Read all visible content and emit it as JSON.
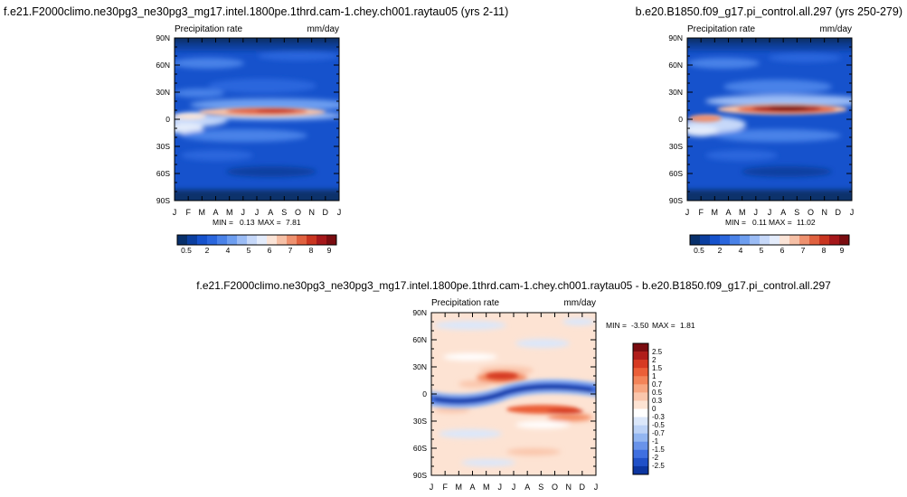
{
  "chart_data": [
    {
      "type": "heatmap",
      "title": "f.e21.F2000climo.ne30pg3_ne30pg3_mg17.intel.1800pe.1thrd.cam-1.chey.ch001.raytau05 (yrs 2-11)",
      "left_label": "Precipitation rate",
      "right_label": "mm/day",
      "x_ticks": [
        "J",
        "F",
        "M",
        "A",
        "M",
        "J",
        "J",
        "A",
        "S",
        "O",
        "N",
        "D",
        "J"
      ],
      "y_ticks": [
        "90N",
        "60N",
        "30N",
        "0",
        "30S",
        "60S",
        "90S"
      ],
      "ylim": [
        -90,
        90
      ],
      "stats": {
        "min_label": "MIN =",
        "min": "0.13",
        "max_label": "MAX =",
        "max": "7.81"
      },
      "colorbar": {
        "orientation": "horizontal",
        "labels": [
          "0.5",
          "2",
          "4",
          "5",
          "6",
          "7",
          "8",
          "9"
        ],
        "colors": [
          "#08306b",
          "#0b3fa0",
          "#1652cc",
          "#2a66dd",
          "#4a82e8",
          "#6d9ef0",
          "#9bbcf5",
          "#c6d8f9",
          "#e4ecfb",
          "#fbe4d7",
          "#f6c0a6",
          "#ee916f",
          "#e0613f",
          "#c93520",
          "#a5171a",
          "#7a0c10"
        ]
      }
    },
    {
      "type": "heatmap",
      "title": "b.e20.B1850.f09_g17.pi_control.all.297 (yrs 250-279)",
      "left_label": "Precipitation rate",
      "right_label": "mm/day",
      "x_ticks": [
        "J",
        "F",
        "M",
        "A",
        "M",
        "J",
        "J",
        "A",
        "S",
        "O",
        "N",
        "D",
        "J"
      ],
      "y_ticks": [
        "90N",
        "60N",
        "30N",
        "0",
        "30S",
        "60S",
        "90S"
      ],
      "ylim": [
        -90,
        90
      ],
      "stats": {
        "min_label": "MIN =",
        "min": "0.11",
        "max_label": "MAX =",
        "max": "11.02"
      },
      "colorbar": {
        "orientation": "horizontal",
        "labels": [
          "0.5",
          "2",
          "4",
          "5",
          "6",
          "7",
          "8",
          "9"
        ],
        "colors": [
          "#08306b",
          "#0b3fa0",
          "#1652cc",
          "#2a66dd",
          "#4a82e8",
          "#6d9ef0",
          "#9bbcf5",
          "#c6d8f9",
          "#e4ecfb",
          "#fbe4d7",
          "#f6c0a6",
          "#ee916f",
          "#e0613f",
          "#c93520",
          "#a5171a",
          "#7a0c10"
        ]
      }
    },
    {
      "type": "heatmap",
      "title": "f.e21.F2000climo.ne30pg3_ne30pg3_mg17.intel.1800pe.1thrd.cam-1.chey.ch001.raytau05 - b.e20.B1850.f09_g17.pi_control.all.297",
      "left_label": "Precipitation rate",
      "right_label": "mm/day",
      "x_ticks": [
        "J",
        "F",
        "M",
        "A",
        "M",
        "J",
        "J",
        "A",
        "S",
        "O",
        "N",
        "D",
        "J"
      ],
      "y_ticks": [
        "90N",
        "60N",
        "30N",
        "0",
        "30S",
        "60S",
        "90S"
      ],
      "ylim": [
        -90,
        90
      ],
      "stats": {
        "min_label": "MIN =",
        "min": "-3.50",
        "max_label": "MAX =",
        "max": "1.81"
      },
      "colorbar": {
        "orientation": "vertical",
        "labels": [
          "2.5",
          "2",
          "1.5",
          "1",
          "0.7",
          "0.5",
          "0.3",
          "0",
          "-0.3",
          "-0.5",
          "-0.7",
          "-1",
          "-1.5",
          "-2",
          "-2.5"
        ],
        "colors": [
          "#7a0c10",
          "#b01d1a",
          "#d63a22",
          "#eb5f38",
          "#f38459",
          "#f7a681",
          "#fac6ac",
          "#fde3d3",
          "#ffffff",
          "#dbe7fa",
          "#bcd2f6",
          "#93b6f1",
          "#6993ea",
          "#3f6fe0",
          "#2050c8",
          "#0c35a0"
        ]
      }
    }
  ]
}
